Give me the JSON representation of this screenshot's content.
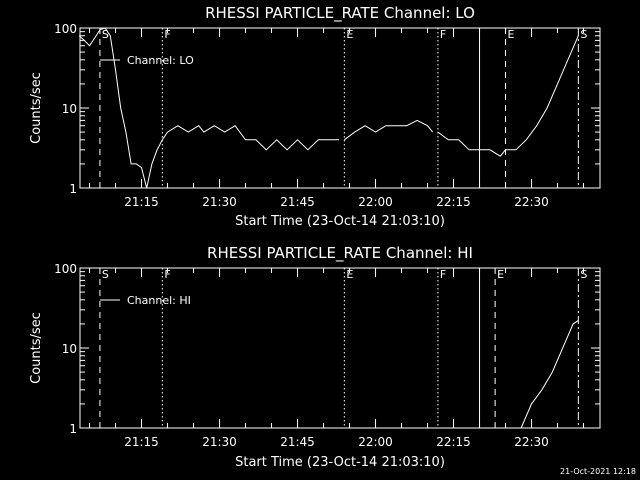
{
  "footer": "21-Oct-2021 12:18",
  "chart_data": [
    {
      "type": "line",
      "title": "RHESSI PARTICLE_RATE Channel: LO",
      "xlabel": "Start Time (23-Oct-14 21:03:10)",
      "ylabel": "Counts/sec",
      "x_ticks": [
        "21:15",
        "21:30",
        "21:45",
        "22:00",
        "22:15",
        "22:30"
      ],
      "y_ticks": [
        "1",
        "10",
        "100"
      ],
      "ylim": [
        1,
        100
      ],
      "xlim_minutes_since_start": [
        0,
        100
      ],
      "y_scale": "log",
      "legend": {
        "label": "Channel: LO",
        "placement": "top-left"
      },
      "markers": [
        {
          "label": "S",
          "time": "21:07",
          "style": "dashed"
        },
        {
          "label": "F",
          "time": "21:19",
          "style": "dotted"
        },
        {
          "label": "E",
          "time": "21:54",
          "style": "dotted"
        },
        {
          "label": "F",
          "time": "22:12",
          "style": "dotted"
        },
        {
          "label": "",
          "time": "22:20",
          "style": "solid"
        },
        {
          "label": "E",
          "time": "22:25",
          "style": "dashed"
        },
        {
          "label": "S",
          "time": "22:39",
          "style": "dash-dot"
        }
      ],
      "series": [
        {
          "segments": [
            [
              [
                "21:03",
                80
              ],
              [
                "21:04",
                70
              ],
              [
                "21:05",
                60
              ],
              [
                "21:06",
                75
              ],
              [
                "21:07",
                95
              ],
              [
                "21:08",
                100
              ],
              [
                "21:09",
                80
              ],
              [
                "21:10",
                30
              ],
              [
                "21:11",
                10
              ],
              [
                "21:12",
                5
              ],
              [
                "21:13",
                2
              ],
              [
                "21:14",
                2
              ],
              [
                "21:15",
                1.8
              ],
              [
                "21:16",
                1
              ],
              [
                "21:17",
                2
              ],
              [
                "21:18",
                3
              ],
              [
                "21:19",
                4
              ]
            ],
            [
              [
                "21:19",
                4
              ],
              [
                "21:20",
                5
              ],
              [
                "21:22",
                6
              ],
              [
                "21:24",
                5
              ],
              [
                "21:26",
                6
              ],
              [
                "21:27",
                5
              ],
              [
                "21:29",
                6
              ],
              [
                "21:31",
                5
              ],
              [
                "21:33",
                6
              ],
              [
                "21:35",
                4
              ],
              [
                "21:37",
                4
              ],
              [
                "21:39",
                3
              ],
              [
                "21:41",
                4
              ],
              [
                "21:43",
                3
              ],
              [
                "21:45",
                4
              ],
              [
                "21:47",
                3
              ],
              [
                "21:49",
                4
              ],
              [
                "21:51",
                4
              ],
              [
                "21:53",
                4
              ]
            ],
            [
              [
                "21:54",
                4
              ],
              [
                "21:56",
                5
              ],
              [
                "21:58",
                6
              ],
              [
                "22:00",
                5
              ],
              [
                "22:02",
                6
              ],
              [
                "22:04",
                6
              ],
              [
                "22:06",
                6
              ],
              [
                "22:08",
                7
              ],
              [
                "22:10",
                6
              ],
              [
                "22:11",
                5
              ]
            ],
            [
              [
                "22:12",
                5
              ],
              [
                "22:14",
                4
              ],
              [
                "22:16",
                4
              ],
              [
                "22:18",
                3
              ],
              [
                "22:20",
                3
              ]
            ],
            [
              [
                "22:20",
                3
              ],
              [
                "22:22",
                3
              ],
              [
                "22:24",
                2.5
              ],
              [
                "22:25",
                3
              ],
              [
                "22:27",
                3
              ],
              [
                "22:29",
                4
              ],
              [
                "22:31",
                6
              ],
              [
                "22:33",
                10
              ],
              [
                "22:35",
                20
              ],
              [
                "22:37",
                40
              ],
              [
                "22:39",
                80
              ]
            ]
          ]
        }
      ]
    },
    {
      "type": "line",
      "title": "RHESSI PARTICLE_RATE Channel: HI",
      "xlabel": "Start Time (23-Oct-14 21:03:10)",
      "ylabel": "Counts/sec",
      "x_ticks": [
        "21:15",
        "21:30",
        "21:45",
        "22:00",
        "22:15",
        "22:30"
      ],
      "y_ticks": [
        "1",
        "10",
        "100"
      ],
      "ylim": [
        1,
        100
      ],
      "xlim_minutes_since_start": [
        0,
        100
      ],
      "y_scale": "log",
      "legend": {
        "label": "Channel: HI",
        "placement": "top-left"
      },
      "markers": [
        {
          "label": "S",
          "time": "21:07",
          "style": "dashed"
        },
        {
          "label": "F",
          "time": "21:19",
          "style": "dotted"
        },
        {
          "label": "E",
          "time": "21:54",
          "style": "dotted"
        },
        {
          "label": "F",
          "time": "22:12",
          "style": "dotted"
        },
        {
          "label": "",
          "time": "22:20",
          "style": "solid"
        },
        {
          "label": "E",
          "time": "22:23",
          "style": "dashed"
        },
        {
          "label": "S",
          "time": "22:39",
          "style": "dash-dot"
        }
      ],
      "series": [
        {
          "segments": [
            [
              [
                "22:28",
                1
              ],
              [
                "22:30",
                2
              ],
              [
                "22:32",
                3
              ],
              [
                "22:34",
                5
              ],
              [
                "22:36",
                10
              ],
              [
                "22:38",
                20
              ],
              [
                "22:39",
                22
              ]
            ]
          ]
        }
      ]
    }
  ]
}
